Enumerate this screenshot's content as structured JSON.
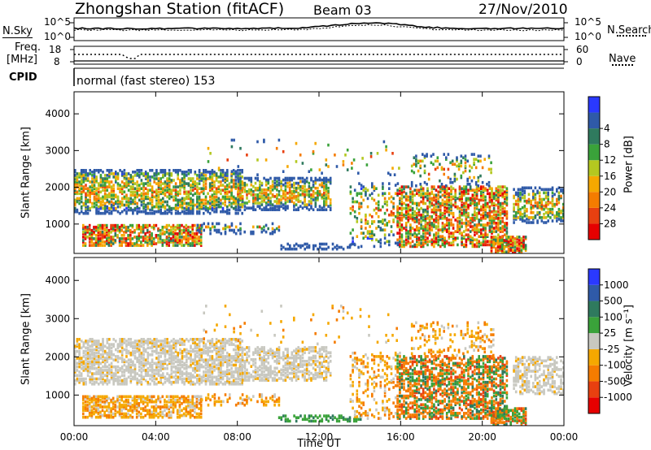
{
  "header": {
    "station": "Zhongshan Station (fitACF)",
    "beam": "Beam 03",
    "date": "27/Nov/2010"
  },
  "top_panels": {
    "nsky_label": "N.Sky",
    "nsky_ticks": [
      "10^5",
      "10^0"
    ],
    "nsearch_label": "N.Search",
    "nsearch_ticks": [
      "10^5",
      "10^0"
    ],
    "freq_label": "Freq.",
    "freq_unit": "[MHz]",
    "freq_ticks": [
      "18",
      "8"
    ],
    "nave_label": "Nave",
    "nave_ticks": [
      "60",
      "0"
    ],
    "cpid_label": "CPID",
    "cpid_text": "normal (fast stereo) 153"
  },
  "chart_data": [
    {
      "type": "heatmap",
      "name": "power",
      "xlabel": "",
      "ylabel": "Slant Range [km]",
      "yticks": [
        "1000",
        "2000",
        "3000",
        "4000"
      ],
      "ylim": [
        200,
        4600
      ],
      "xlim_hours": [
        0,
        24
      ],
      "colorbar": {
        "label": "Power [dB]",
        "ticks": [
          "4",
          "8",
          "12",
          "16",
          "20",
          "24",
          "28"
        ],
        "colors": [
          "#2a39ff",
          "#2f5aa8",
          "#2f7a5e",
          "#3aa23a",
          "#b4c820",
          "#f5a800",
          "#f57c00",
          "#e84010",
          "#e60000"
        ]
      },
      "echo_regions": [
        {
          "t": [
            0.0,
            8.0
          ],
          "r": [
            1300,
            2400
          ],
          "level": "mixed"
        },
        {
          "t": [
            8.0,
            12.5
          ],
          "r": [
            1400,
            2200
          ],
          "level": "mixed"
        },
        {
          "t": [
            0.5,
            6.0
          ],
          "r": [
            400,
            900
          ],
          "level": "strong"
        },
        {
          "t": [
            16.0,
            21.0
          ],
          "r": [
            400,
            1900
          ],
          "level": "strong"
        },
        {
          "t": [
            20.5,
            22.0
          ],
          "r": [
            200,
            600
          ],
          "level": "strong"
        }
      ]
    },
    {
      "type": "heatmap",
      "name": "velocity",
      "xlabel": "Time UT",
      "ylabel": "Slant Range [km]",
      "yticks": [
        "1000",
        "2000",
        "3000",
        "4000"
      ],
      "ylim": [
        200,
        4600
      ],
      "xticks": [
        "00:00",
        "04:00",
        "08:00",
        "12:00",
        "16:00",
        "20:00",
        "00:00"
      ],
      "xlim_hours": [
        0,
        24
      ],
      "colorbar": {
        "label": "Velocity [m s⁻¹]",
        "ticks": [
          "1000",
          "500",
          "100",
          "25",
          "-25",
          "-100",
          "-500",
          "-1000"
        ],
        "colors": [
          "#2a39ff",
          "#2f5aa8",
          "#2f7a5e",
          "#3aa23a",
          "#c8c8c0",
          "#f5a800",
          "#f57c00",
          "#e84010",
          "#e60000"
        ]
      }
    }
  ]
}
